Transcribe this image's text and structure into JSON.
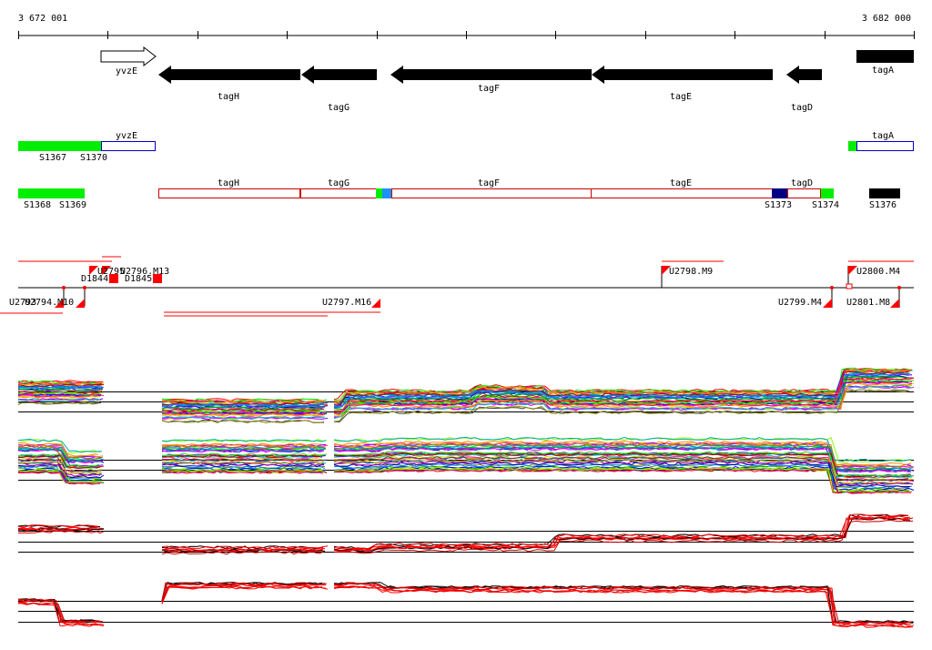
{
  "axis": {
    "start_label": "3 672 001",
    "end_label": "3 682 000"
  },
  "genes": {
    "yvzE": "yvzE",
    "tagH": "tagH",
    "tagG": "tagG",
    "tagF": "tagF",
    "tagE": "tagE",
    "tagD": "tagD",
    "tagA": "tagA"
  },
  "segments": {
    "s1367": "S1367",
    "s1370": "S1370",
    "s1368": "S1368",
    "s1369": "S1369",
    "s1373": "S1373",
    "s1374": "S1374",
    "s1376": "S1376"
  },
  "probes": {
    "u_a": "U2795",
    "u_b": "U2796.M13",
    "d1844": "D1844",
    "d1845": "D1845",
    "u2794": "U2794.M10",
    "u2793": "U2793",
    "u2797": "U2797.M16",
    "u2798": "U2798.M9",
    "u2799": "U2799.M4",
    "u2800": "U2800.M4",
    "u2801": "U2801.M8"
  },
  "colors": {
    "gene_fill": "#000000",
    "segment_green": "#00ee00",
    "segment_blue": "#0000cc",
    "segment_cyan": "#1e90ff",
    "segment_navy": "#000080",
    "probe_red": "#ff0000",
    "outline_red": "#cc0000"
  }
}
